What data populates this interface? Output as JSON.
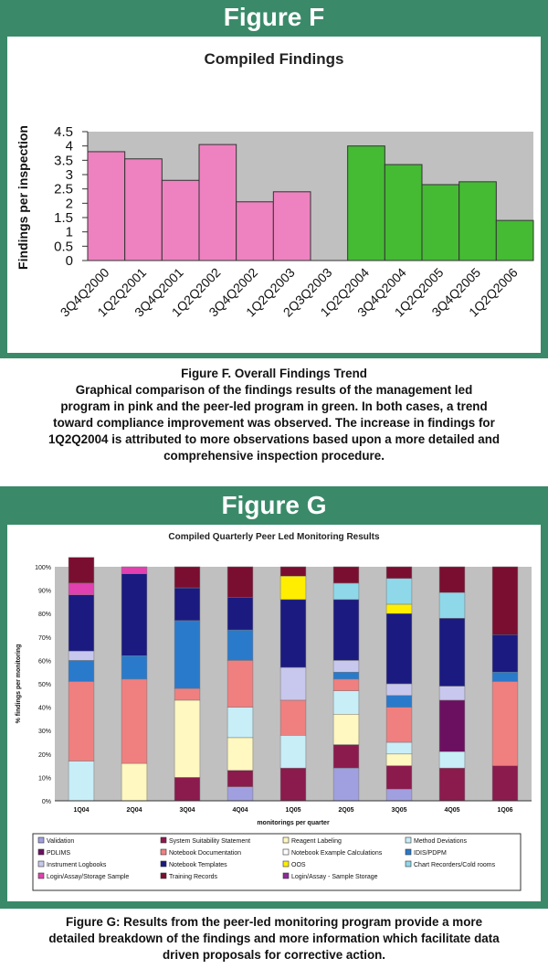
{
  "figF": {
    "banner": "Figure F",
    "caption_lines": [
      "Figure F. Overall Findings Trend",
      "Graphical comparison of the findings results of the management led",
      "program in pink and the peer-led program in green.  In both cases, a trend",
      "toward compliance improvement was observed.  The increase in findings for",
      "1Q2Q2004 is attributed to more observations based upon a more detailed and",
      "comprehensive inspection procedure."
    ]
  },
  "figG": {
    "banner": "Figure G",
    "caption_lines": [
      "Figure G:  Results from the peer-led monitoring program provide a more",
      "detailed breakdown of the findings and more information which facilitate data",
      "driven proposals for corrective action."
    ]
  },
  "chart_data": [
    {
      "type": "bar",
      "title": "Compiled Findings",
      "xlabel": "",
      "ylabel": "Findings per inspection",
      "ylim": [
        0,
        4.5
      ],
      "yticks": [
        "0",
        "0.5",
        "1",
        "1.5",
        "2",
        "2.5",
        "3",
        "3.5",
        "4",
        "4.5"
      ],
      "categories": [
        "3Q4Q2000",
        "1Q2Q2001",
        "3Q4Q2001",
        "1Q2Q2002",
        "3Q4Q2002",
        "1Q2Q2003",
        "2Q3Q2003",
        "1Q2Q2004",
        "3Q4Q2004",
        "1Q2Q2005",
        "3Q4Q2005",
        "1Q2Q2006"
      ],
      "values": [
        3.8,
        3.55,
        2.8,
        4.05,
        2.05,
        2.4,
        0,
        4.0,
        3.35,
        2.65,
        2.75,
        1.4
      ],
      "bar_colors": [
        "#ee82c0",
        "#ee82c0",
        "#ee82c0",
        "#ee82c0",
        "#ee82c0",
        "#ee82c0",
        "#ee82c0",
        "#44bb33",
        "#44bb33",
        "#44bb33",
        "#44bb33",
        "#44bb33"
      ],
      "plot_bg": "#c0c0c0",
      "grid": false
    },
    {
      "type": "bar",
      "stacked": true,
      "title": "Compiled Quarterly Peer Led Monitoring Results",
      "xlabel": "monitorings per quarter",
      "ylabel": "% findings per monitoring",
      "ylim": [
        0,
        100
      ],
      "yticks": [
        "0%",
        "10%",
        "20%",
        "30%",
        "40%",
        "50%",
        "60%",
        "70%",
        "80%",
        "90%",
        "100%"
      ],
      "categories": [
        "1Q04",
        "2Q04",
        "3Q04",
        "4Q04",
        "1Q05",
        "2Q05",
        "3Q05",
        "4Q05",
        "1Q06"
      ],
      "series": [
        {
          "name": "Validation",
          "color": "#a0a0e0",
          "values": [
            0,
            0,
            0,
            6,
            0,
            14,
            5,
            0,
            0
          ]
        },
        {
          "name": "System Suitability Statement",
          "color": "#8b1a4d",
          "values": [
            0,
            0,
            10,
            7,
            14,
            10,
            10,
            14,
            15
          ]
        },
        {
          "name": "Reagent Labeling",
          "color": "#fff8c0",
          "values": [
            0,
            16,
            33,
            14,
            0,
            13,
            5,
            0,
            0
          ]
        },
        {
          "name": "Method Deviations",
          "color": "#c8eef8",
          "values": [
            17,
            0,
            0,
            13,
            14,
            10,
            5,
            7,
            0
          ]
        },
        {
          "name": "PDLIMS",
          "color": "#6b1060",
          "values": [
            0,
            0,
            0,
            0,
            0,
            0,
            0,
            22,
            0
          ]
        },
        {
          "name": "Notebook Documentation",
          "color": "#f08080",
          "values": [
            34,
            36,
            5,
            20,
            15,
            5,
            15,
            0,
            36
          ]
        },
        {
          "name": "Notebook Example Calculations",
          "color": "#ffffff",
          "values": [
            0,
            0,
            0,
            0,
            0,
            0,
            0,
            0,
            0
          ]
        },
        {
          "name": "IDIS/PDPM",
          "color": "#2a7acc",
          "values": [
            9,
            10,
            29,
            13,
            0,
            3,
            5,
            0,
            4
          ]
        },
        {
          "name": "Instrument Logbooks",
          "color": "#c8c8ee",
          "values": [
            4,
            0,
            0,
            0,
            14,
            5,
            5,
            6,
            0
          ]
        },
        {
          "name": "Notebook Templates",
          "color": "#1a1a80",
          "values": [
            24,
            35,
            14,
            14,
            29,
            26,
            30,
            29,
            16
          ]
        },
        {
          "name": "OOS",
          "color": "#ffee00",
          "values": [
            0,
            0,
            0,
            0,
            10,
            0,
            4,
            0,
            0
          ]
        },
        {
          "name": "Chart Recorders/Cold rooms",
          "color": "#8ed8ea",
          "values": [
            0,
            0,
            0,
            0,
            0,
            7,
            11,
            11,
            0
          ]
        },
        {
          "name": "Login/Assay/Storage Sample",
          "color": "#e040b0",
          "values": [
            5,
            3,
            0,
            0,
            0,
            0,
            0,
            0,
            0
          ]
        },
        {
          "name": "Training Records",
          "color": "#7a0e30",
          "values": [
            11,
            0,
            9,
            13,
            4,
            7,
            5,
            11,
            29
          ]
        },
        {
          "name": "Login/Assay - Sample Storage",
          "color": "#8e2a9a",
          "values": [
            0,
            0,
            0,
            0,
            0,
            0,
            0,
            0,
            0
          ]
        }
      ],
      "legend": "bottom",
      "plot_bg": "#c0c0c0"
    }
  ]
}
